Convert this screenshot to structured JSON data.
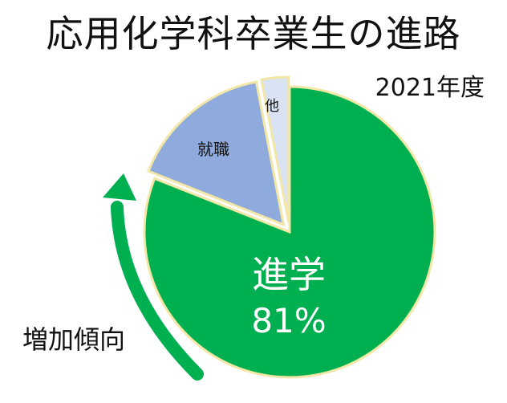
{
  "title": "応用化学科卒業生の進路",
  "subtitle": "2021年度",
  "annotation": "増加傾向",
  "colors": {
    "shingaku": "#00B050",
    "shuushoku": "#8FAADC",
    "other": "#DAE3F3",
    "border": "#F2E7A6",
    "arrow": "#00B050"
  },
  "chart_data": {
    "type": "pie",
    "title": "応用化学科卒業生の進路",
    "subtitle": "2021年度",
    "start": "12 o'clock, clockwise",
    "slices": [
      {
        "label": "進学",
        "value_label": "81%",
        "value": 81
      },
      {
        "label": "就職",
        "value": 16
      },
      {
        "label": "他",
        "value": 3
      }
    ],
    "exploded": [
      "就職",
      "他"
    ]
  }
}
